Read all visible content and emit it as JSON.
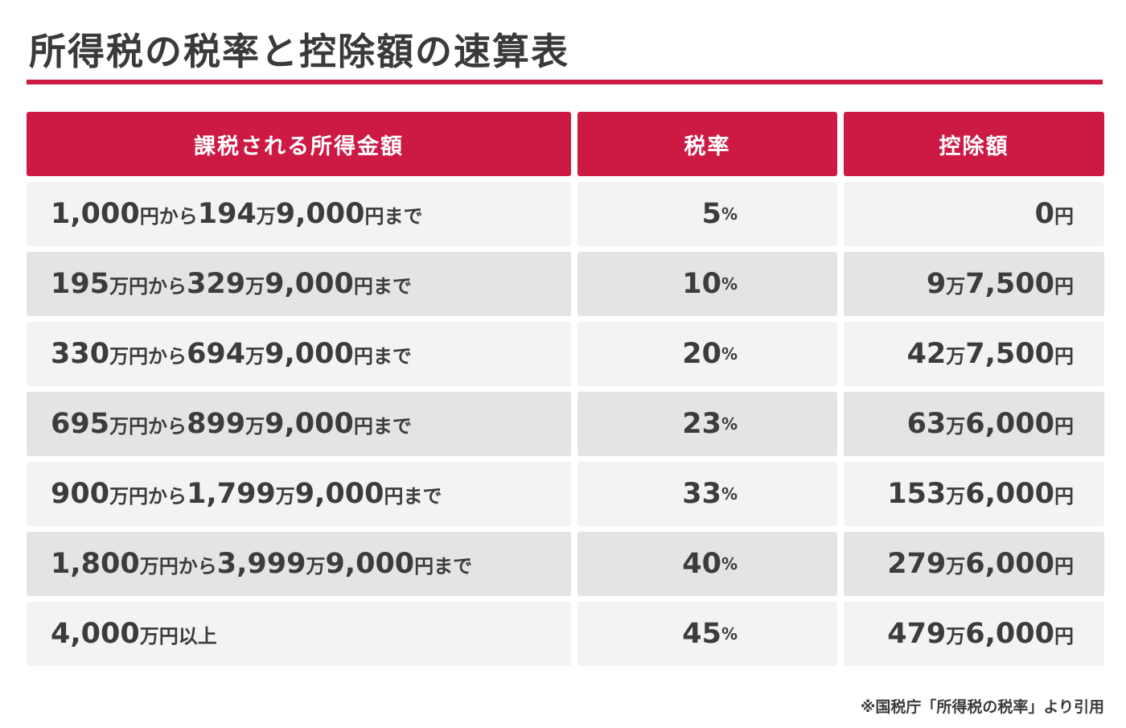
{
  "title": "所得税の税率と控除額の速算表",
  "accent_color": "#cc1a45",
  "headers": [
    "課税される所得金額",
    "税率",
    "控除額"
  ],
  "rows": [
    {
      "income": [
        [
          "1,000",
          ""
        ],
        [
          "円から",
          ""
        ],
        [
          "194",
          ""
        ],
        [
          "万",
          ""
        ],
        [
          "9,000",
          ""
        ],
        [
          "円まで",
          ""
        ]
      ],
      "rate": "5",
      "deduction": [
        [
          "0",
          ""
        ],
        [
          "円",
          ""
        ]
      ]
    },
    {
      "income": [
        [
          "195",
          ""
        ],
        [
          "万円から",
          ""
        ],
        [
          "329",
          ""
        ],
        [
          "万",
          ""
        ],
        [
          "9,000",
          ""
        ],
        [
          "円まで",
          ""
        ]
      ],
      "rate": "10",
      "deduction": [
        [
          "9",
          ""
        ],
        [
          "万",
          ""
        ],
        [
          "7,500",
          ""
        ],
        [
          "円",
          ""
        ]
      ]
    },
    {
      "income": [
        [
          "330",
          ""
        ],
        [
          "万円から",
          ""
        ],
        [
          "694",
          ""
        ],
        [
          "万",
          ""
        ],
        [
          "9,000",
          ""
        ],
        [
          "円まで",
          ""
        ]
      ],
      "rate": "20",
      "deduction": [
        [
          "42",
          ""
        ],
        [
          "万",
          ""
        ],
        [
          "7,500",
          ""
        ],
        [
          "円",
          ""
        ]
      ]
    },
    {
      "income": [
        [
          "695",
          ""
        ],
        [
          "万円から",
          ""
        ],
        [
          "899",
          ""
        ],
        [
          "万",
          ""
        ],
        [
          "9,000",
          ""
        ],
        [
          "円まで",
          ""
        ]
      ],
      "rate": "23",
      "deduction": [
        [
          "63",
          ""
        ],
        [
          "万",
          ""
        ],
        [
          "6,000",
          ""
        ],
        [
          "円",
          ""
        ]
      ]
    },
    {
      "income": [
        [
          "900",
          ""
        ],
        [
          "万円から",
          ""
        ],
        [
          "1,799",
          ""
        ],
        [
          "万",
          ""
        ],
        [
          "9,000",
          ""
        ],
        [
          "円まで",
          ""
        ]
      ],
      "rate": "33",
      "deduction": [
        [
          "153",
          ""
        ],
        [
          "万",
          ""
        ],
        [
          "6,000",
          ""
        ],
        [
          "円",
          ""
        ]
      ]
    },
    {
      "income": [
        [
          "1,800",
          ""
        ],
        [
          "万円から",
          ""
        ],
        [
          "3,999",
          ""
        ],
        [
          "万",
          ""
        ],
        [
          "9,000",
          ""
        ],
        [
          "円まで",
          ""
        ]
      ],
      "rate": "40",
      "deduction": [
        [
          "279",
          ""
        ],
        [
          "万",
          ""
        ],
        [
          "6,000",
          ""
        ],
        [
          "円",
          ""
        ]
      ]
    },
    {
      "income": [
        [
          "4,000",
          ""
        ],
        [
          "万円以上",
          ""
        ]
      ],
      "rate": "45",
      "deduction": [
        [
          "479",
          ""
        ],
        [
          "万",
          ""
        ],
        [
          "6,000",
          ""
        ],
        [
          "円",
          ""
        ]
      ]
    }
  ],
  "percent_sign": "%",
  "source": "※国税庁「所得税の税率」より引用"
}
